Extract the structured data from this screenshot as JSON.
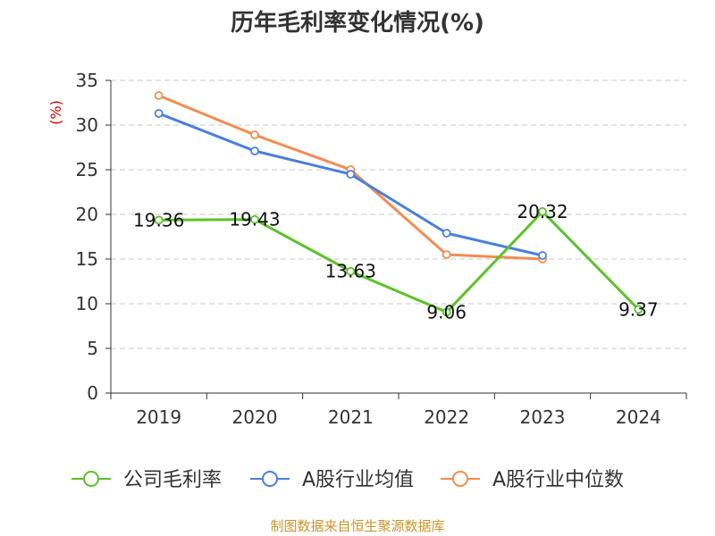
{
  "chart_data": {
    "type": "line",
    "title": "历年毛利率变化情况(%)",
    "ylabel": "(%)",
    "xlabel": "",
    "categories": [
      "2019",
      "2020",
      "2021",
      "2022",
      "2023",
      "2024"
    ],
    "ylim": [
      0,
      35
    ],
    "yticks": [
      0,
      5,
      10,
      15,
      20,
      25,
      30,
      35
    ],
    "grid": "horizontal-dashed",
    "legend_position": "bottom",
    "series": [
      {
        "name": "公司毛利率",
        "color": "#5cc12b",
        "values": [
          19.36,
          19.43,
          13.63,
          9.06,
          20.32,
          9.37
        ],
        "labels": [
          "19.36",
          "19.43",
          "13.63",
          "9.06",
          "20.32",
          "9.37"
        ]
      },
      {
        "name": "A股行业均值",
        "color": "#4a7fdc",
        "values": [
          31.3,
          27.1,
          24.5,
          17.9,
          15.4,
          null
        ]
      },
      {
        "name": "A股行业中位数",
        "color": "#f28c52",
        "values": [
          33.3,
          28.9,
          25.0,
          15.5,
          15.0,
          null
        ]
      }
    ]
  },
  "footer": {
    "source": "制图数据来自恒生聚源数据库"
  }
}
